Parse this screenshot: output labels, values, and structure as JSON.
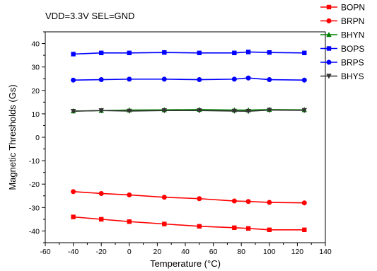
{
  "chart_data": {
    "type": "line",
    "annotation": "VDD=3.3V SEL=GND",
    "xlabel": "Temperature (°C)",
    "ylabel": "Magnetic Thresholds (Gs)",
    "xlim": [
      -60,
      140
    ],
    "ylim": [
      -45,
      45
    ],
    "xticks": [
      -60,
      -40,
      -20,
      0,
      20,
      40,
      60,
      80,
      100,
      120,
      140
    ],
    "yticks": [
      -40,
      -30,
      -20,
      -10,
      0,
      10,
      20,
      30,
      40
    ],
    "grid": false,
    "legend_position": "top-right",
    "x": [
      -40,
      -20,
      0,
      25,
      50,
      75,
      85,
      100,
      125
    ],
    "series": [
      {
        "name": "BOPN",
        "color": "#ff0000",
        "marker": "square",
        "values": [
          -34,
          -35,
          -36,
          -37,
          -38,
          -38.6,
          -38.9,
          -39.5,
          -39.5
        ]
      },
      {
        "name": "BRPN",
        "color": "#ff0000",
        "marker": "circle",
        "values": [
          -23.2,
          -24,
          -24.6,
          -25.6,
          -26.2,
          -27.2,
          -27.4,
          -27.8,
          -28
        ]
      },
      {
        "name": "BHYN",
        "color": "#008000",
        "marker": "triangle-up",
        "values": [
          11.2,
          11.4,
          11.6,
          11.7,
          11.8,
          11.6,
          11.6,
          11.8,
          11.7
        ]
      },
      {
        "name": "BOPS",
        "color": "#0000ff",
        "marker": "square",
        "values": [
          35.5,
          36,
          36,
          36.2,
          36,
          36,
          36.4,
          36.2,
          36
        ]
      },
      {
        "name": "BRPS",
        "color": "#0000ff",
        "marker": "circle",
        "values": [
          24.4,
          24.6,
          24.8,
          24.8,
          24.6,
          24.8,
          25.3,
          24.6,
          24.4
        ]
      },
      {
        "name": "BHYS",
        "color": "#333333",
        "marker": "triangle-down",
        "values": [
          11.1,
          11.4,
          11.2,
          11.4,
          11.4,
          11.2,
          11.1,
          11.6,
          11.5
        ]
      }
    ]
  }
}
